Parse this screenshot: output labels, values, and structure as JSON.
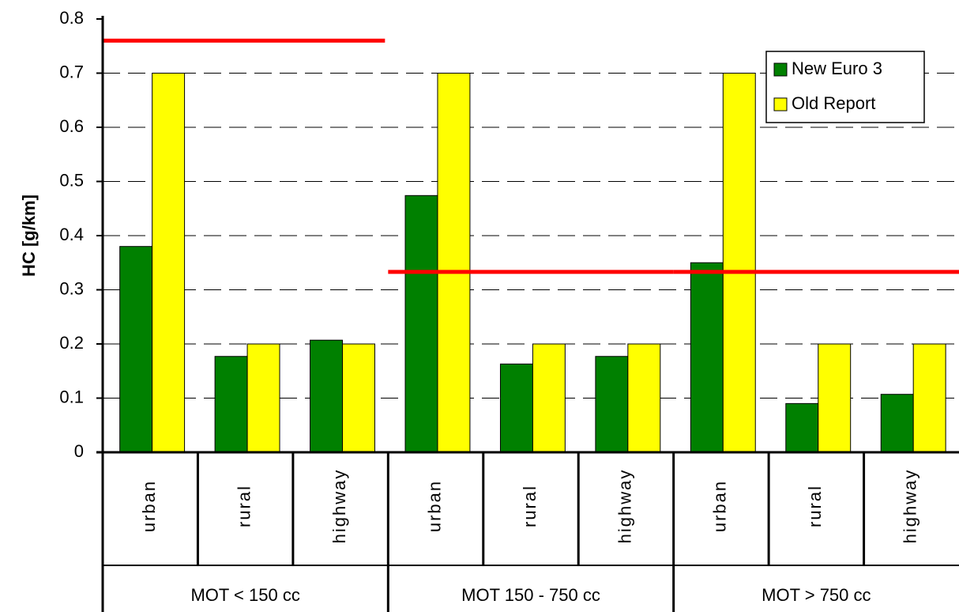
{
  "chart_data": {
    "type": "bar",
    "y_label": "HC [g/km]",
    "groups": [
      "MOT < 150 cc",
      "MOT 150 - 750 cc",
      "MOT > 750 cc"
    ],
    "categories": [
      "urban",
      "rural",
      "highway",
      "urban",
      "rural",
      "highway",
      "urban",
      "rural",
      "highway"
    ],
    "series": [
      {
        "name": "New Euro 3",
        "color": "#008000",
        "values": [
          0.38,
          0.177,
          0.207,
          0.474,
          0.163,
          0.177,
          0.35,
          0.09,
          0.107
        ]
      },
      {
        "name": "Old Report",
        "color": "#ffff00",
        "values": [
          0.7,
          0.2,
          0.2,
          0.7,
          0.2,
          0.2,
          0.7,
          0.2,
          0.2
        ]
      }
    ],
    "reference_lines": {
      "color": "#ff0000",
      "values": [
        0.76,
        0.333,
        0.333
      ]
    },
    "ylim": [
      0,
      0.8
    ],
    "yticks": [
      0,
      0.1,
      0.2,
      0.3,
      0.4,
      0.5,
      0.6,
      0.7,
      0.8
    ],
    "grid": true,
    "legend": "top-right"
  }
}
